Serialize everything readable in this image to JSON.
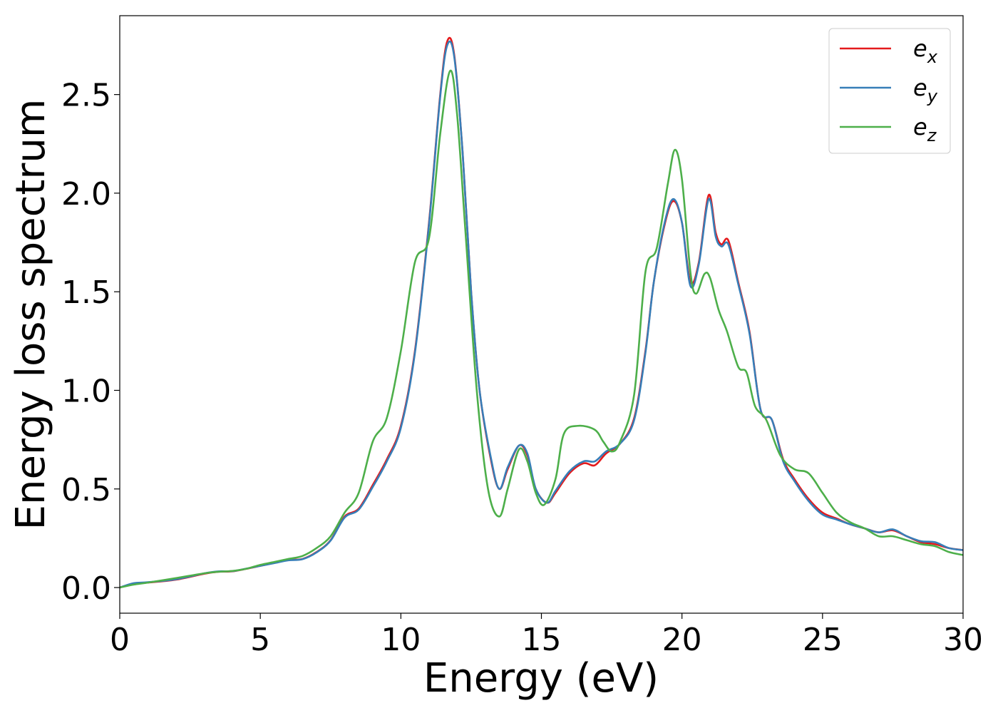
{
  "chart_data": {
    "type": "line",
    "xlabel": "Energy (eV)",
    "ylabel": "Energy loss spectrum",
    "xlim": [
      0,
      30
    ],
    "ylim": [
      -0.13,
      2.9
    ],
    "xticks": [
      0,
      5,
      10,
      15,
      20,
      25,
      30
    ],
    "yticks": [
      0.0,
      0.5,
      1.0,
      1.5,
      2.0,
      2.5
    ],
    "xtick_labels": [
      "0",
      "5",
      "10",
      "15",
      "20",
      "25",
      "30"
    ],
    "ytick_labels": [
      "0.0",
      "0.5",
      "1.0",
      "1.5",
      "2.0",
      "2.5"
    ],
    "grid": false,
    "legend_position": "top-right",
    "series": [
      {
        "name": "e_x",
        "label_base": "e",
        "label_sub": "x",
        "color": "#e41a1c",
        "points": [
          [
            0,
            0.0
          ],
          [
            0.5,
            0.02
          ],
          [
            1,
            0.025
          ],
          [
            2,
            0.04
          ],
          [
            3,
            0.07
          ],
          [
            3.5,
            0.08
          ],
          [
            4,
            0.082
          ],
          [
            4.5,
            0.095
          ],
          [
            5,
            0.11
          ],
          [
            5.5,
            0.125
          ],
          [
            6,
            0.14
          ],
          [
            6.5,
            0.145
          ],
          [
            7,
            0.18
          ],
          [
            7.5,
            0.24
          ],
          [
            8,
            0.36
          ],
          [
            8.5,
            0.4
          ],
          [
            9,
            0.52
          ],
          [
            9.5,
            0.65
          ],
          [
            10,
            0.82
          ],
          [
            10.5,
            1.2
          ],
          [
            11,
            1.85
          ],
          [
            11.4,
            2.5
          ],
          [
            11.65,
            2.77
          ],
          [
            11.9,
            2.7
          ],
          [
            12.2,
            2.2
          ],
          [
            12.5,
            1.5
          ],
          [
            12.8,
            1.0
          ],
          [
            13.2,
            0.65
          ],
          [
            13.5,
            0.5
          ],
          [
            13.8,
            0.6
          ],
          [
            14.2,
            0.72
          ],
          [
            14.5,
            0.67
          ],
          [
            14.8,
            0.5
          ],
          [
            15.2,
            0.43
          ],
          [
            15.5,
            0.48
          ],
          [
            16,
            0.58
          ],
          [
            16.5,
            0.63
          ],
          [
            16.9,
            0.62
          ],
          [
            17.3,
            0.68
          ],
          [
            17.8,
            0.73
          ],
          [
            18.3,
            0.86
          ],
          [
            18.7,
            1.2
          ],
          [
            19,
            1.55
          ],
          [
            19.4,
            1.85
          ],
          [
            19.7,
            1.96
          ],
          [
            20,
            1.85
          ],
          [
            20.3,
            1.55
          ],
          [
            20.6,
            1.65
          ],
          [
            20.95,
            1.99
          ],
          [
            21.2,
            1.8
          ],
          [
            21.4,
            1.74
          ],
          [
            21.65,
            1.76
          ],
          [
            22,
            1.55
          ],
          [
            22.4,
            1.3
          ],
          [
            22.8,
            0.9
          ],
          [
            23.2,
            0.85
          ],
          [
            23.6,
            0.65
          ],
          [
            24,
            0.55
          ],
          [
            24.5,
            0.45
          ],
          [
            25,
            0.38
          ],
          [
            25.5,
            0.35
          ],
          [
            26,
            0.32
          ],
          [
            26.5,
            0.3
          ],
          [
            27,
            0.28
          ],
          [
            27.5,
            0.29
          ],
          [
            28,
            0.26
          ],
          [
            28.5,
            0.23
          ],
          [
            29,
            0.22
          ],
          [
            29.5,
            0.2
          ],
          [
            30,
            0.19
          ]
        ]
      },
      {
        "name": "e_y",
        "label_base": "e",
        "label_sub": "y",
        "color": "#377eb8",
        "points": [
          [
            0,
            0.0
          ],
          [
            0.5,
            0.022
          ],
          [
            1,
            0.027
          ],
          [
            2,
            0.042
          ],
          [
            3,
            0.072
          ],
          [
            3.5,
            0.082
          ],
          [
            4,
            0.083
          ],
          [
            4.5,
            0.096
          ],
          [
            5,
            0.11
          ],
          [
            5.5,
            0.124
          ],
          [
            6,
            0.138
          ],
          [
            6.5,
            0.144
          ],
          [
            7,
            0.178
          ],
          [
            7.5,
            0.238
          ],
          [
            8,
            0.355
          ],
          [
            8.5,
            0.395
          ],
          [
            9,
            0.51
          ],
          [
            9.5,
            0.64
          ],
          [
            10,
            0.81
          ],
          [
            10.5,
            1.19
          ],
          [
            11,
            1.84
          ],
          [
            11.4,
            2.49
          ],
          [
            11.65,
            2.75
          ],
          [
            11.9,
            2.69
          ],
          [
            12.2,
            2.2
          ],
          [
            12.5,
            1.5
          ],
          [
            12.8,
            1.0
          ],
          [
            13.2,
            0.66
          ],
          [
            13.5,
            0.5
          ],
          [
            13.8,
            0.61
          ],
          [
            14.2,
            0.72
          ],
          [
            14.5,
            0.68
          ],
          [
            14.8,
            0.5
          ],
          [
            15.2,
            0.43
          ],
          [
            15.5,
            0.49
          ],
          [
            16,
            0.59
          ],
          [
            16.5,
            0.64
          ],
          [
            16.9,
            0.64
          ],
          [
            17.3,
            0.69
          ],
          [
            17.8,
            0.73
          ],
          [
            18.3,
            0.85
          ],
          [
            18.7,
            1.19
          ],
          [
            19,
            1.55
          ],
          [
            19.4,
            1.86
          ],
          [
            19.7,
            1.97
          ],
          [
            20,
            1.85
          ],
          [
            20.3,
            1.53
          ],
          [
            20.6,
            1.64
          ],
          [
            20.95,
            1.97
          ],
          [
            21.2,
            1.78
          ],
          [
            21.4,
            1.73
          ],
          [
            21.65,
            1.74
          ],
          [
            22,
            1.54
          ],
          [
            22.4,
            1.29
          ],
          [
            22.8,
            0.9
          ],
          [
            23.2,
            0.85
          ],
          [
            23.6,
            0.64
          ],
          [
            24,
            0.54
          ],
          [
            24.5,
            0.44
          ],
          [
            25,
            0.37
          ],
          [
            25.5,
            0.345
          ],
          [
            26,
            0.32
          ],
          [
            26.5,
            0.3
          ],
          [
            27,
            0.28
          ],
          [
            27.5,
            0.295
          ],
          [
            28,
            0.26
          ],
          [
            28.5,
            0.235
          ],
          [
            29,
            0.23
          ],
          [
            29.5,
            0.2
          ],
          [
            30,
            0.19
          ]
        ]
      },
      {
        "name": "e_z",
        "label_base": "e",
        "label_sub": "z",
        "color": "#4daf4a",
        "points": [
          [
            0,
            0.0
          ],
          [
            0.5,
            0.015
          ],
          [
            1,
            0.025
          ],
          [
            2,
            0.048
          ],
          [
            3,
            0.072
          ],
          [
            3.5,
            0.08
          ],
          [
            4,
            0.084
          ],
          [
            4.5,
            0.095
          ],
          [
            5,
            0.115
          ],
          [
            5.5,
            0.13
          ],
          [
            6,
            0.145
          ],
          [
            6.5,
            0.16
          ],
          [
            7,
            0.2
          ],
          [
            7.5,
            0.26
          ],
          [
            8,
            0.38
          ],
          [
            8.5,
            0.48
          ],
          [
            9,
            0.74
          ],
          [
            9.5,
            0.86
          ],
          [
            10,
            1.2
          ],
          [
            10.5,
            1.65
          ],
          [
            11,
            1.77
          ],
          [
            11.4,
            2.3
          ],
          [
            11.75,
            2.62
          ],
          [
            12,
            2.4
          ],
          [
            12.3,
            1.8
          ],
          [
            12.7,
            1.0
          ],
          [
            13.1,
            0.5
          ],
          [
            13.5,
            0.36
          ],
          [
            13.8,
            0.5
          ],
          [
            14.2,
            0.7
          ],
          [
            14.5,
            0.64
          ],
          [
            14.8,
            0.48
          ],
          [
            15.1,
            0.42
          ],
          [
            15.5,
            0.55
          ],
          [
            15.8,
            0.78
          ],
          [
            16.3,
            0.82
          ],
          [
            16.9,
            0.8
          ],
          [
            17.2,
            0.74
          ],
          [
            17.5,
            0.69
          ],
          [
            17.8,
            0.74
          ],
          [
            18.3,
            0.98
          ],
          [
            18.7,
            1.6
          ],
          [
            19.1,
            1.72
          ],
          [
            19.5,
            2.05
          ],
          [
            19.75,
            2.22
          ],
          [
            20,
            2.07
          ],
          [
            20.3,
            1.6
          ],
          [
            20.5,
            1.49
          ],
          [
            20.8,
            1.59
          ],
          [
            21,
            1.57
          ],
          [
            21.3,
            1.41
          ],
          [
            21.6,
            1.3
          ],
          [
            22,
            1.12
          ],
          [
            22.3,
            1.09
          ],
          [
            22.6,
            0.92
          ],
          [
            23,
            0.85
          ],
          [
            23.5,
            0.67
          ],
          [
            24,
            0.6
          ],
          [
            24.5,
            0.58
          ],
          [
            25,
            0.48
          ],
          [
            25.5,
            0.38
          ],
          [
            26,
            0.33
          ],
          [
            26.5,
            0.3
          ],
          [
            27,
            0.26
          ],
          [
            27.5,
            0.26
          ],
          [
            28,
            0.24
          ],
          [
            28.5,
            0.22
          ],
          [
            29,
            0.21
          ],
          [
            29.5,
            0.18
          ],
          [
            30,
            0.165
          ]
        ]
      }
    ]
  }
}
